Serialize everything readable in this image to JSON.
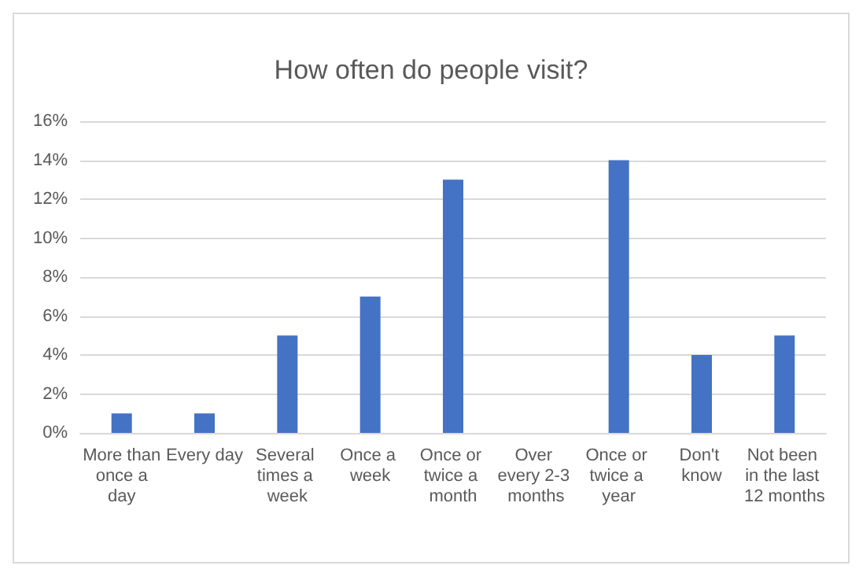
{
  "chart_data": {
    "type": "bar",
    "title": "How often do people visit?",
    "categories": [
      "More than once a day",
      "Every day",
      "Several times a week",
      "Once a week",
      "Once or twice a month",
      "Over every 2-3 months",
      "Once or twice a year",
      "Don't know",
      "Not been in the last 12 months"
    ],
    "values": [
      1,
      1,
      5,
      7,
      13,
      0,
      14,
      4,
      5
    ],
    "color": "#4472c4",
    "ylim": [
      0,
      16
    ],
    "yticks": [
      {
        "value": 0,
        "label": "0%"
      },
      {
        "value": 2,
        "label": "2%"
      },
      {
        "value": 4,
        "label": "4%"
      },
      {
        "value": 6,
        "label": "6%"
      },
      {
        "value": 8,
        "label": "8%"
      },
      {
        "value": 10,
        "label": "10%"
      },
      {
        "value": 12,
        "label": "12%"
      },
      {
        "value": 14,
        "label": "14%"
      },
      {
        "value": 16,
        "label": "16%"
      }
    ],
    "grid": "y"
  }
}
